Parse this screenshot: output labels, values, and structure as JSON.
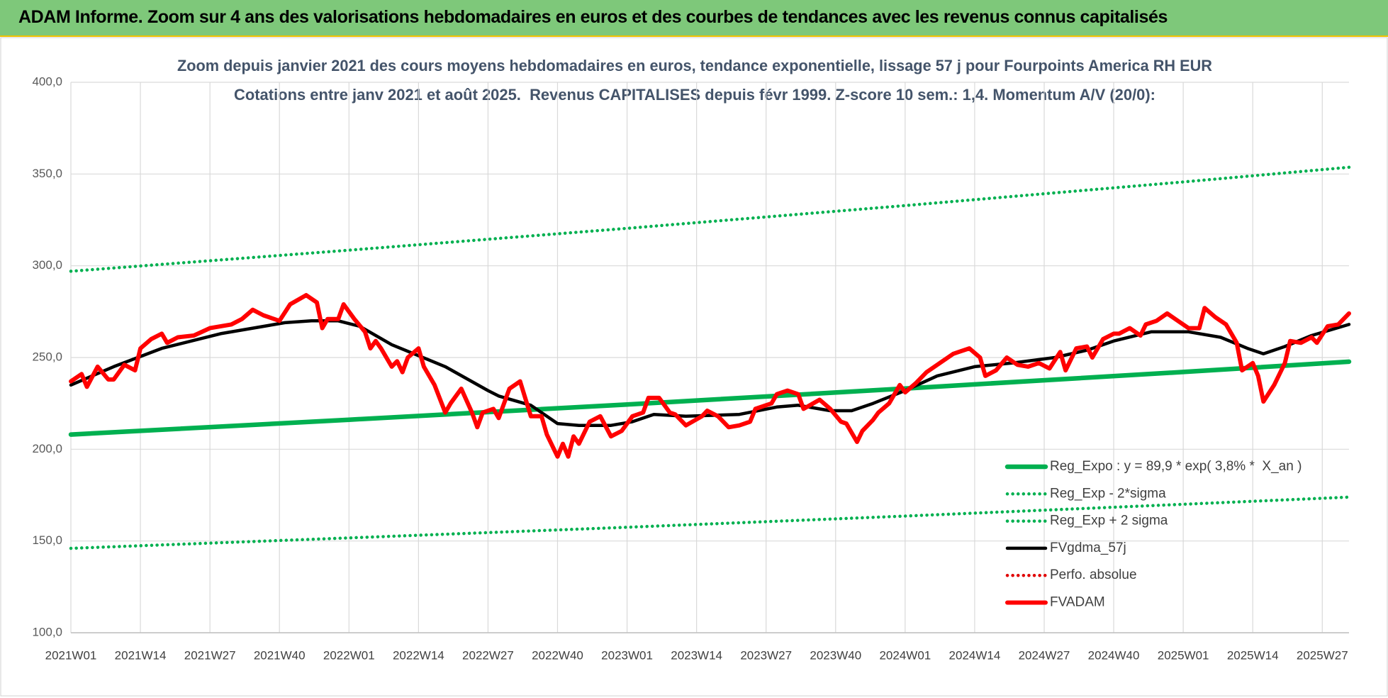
{
  "header": {
    "title": "ADAM Informe. Zoom sur 4 ans des valorisations hebdomadaires en euros et des courbes de tendances avec les revenus connus capitalisés"
  },
  "chart_data": {
    "type": "line",
    "title": "Zoom depuis janvier 2021 des cours moyens hebdomadaires en euros, tendance exponentielle, lissage 57 j pour Fourpoints America RH EUR",
    "subtitle": "Cotations entre janv 2021 et août 2025.  Revenus CAPITALISES depuis févr 1999. Z-score 10 sem.: 1,4. Momentum A/V (20/0):",
    "xlim": [
      0,
      239
    ],
    "xticks": [
      {
        "value": 0,
        "label": "2021W01"
      },
      {
        "value": 13,
        "label": "2021W14"
      },
      {
        "value": 26,
        "label": "2021W27"
      },
      {
        "value": 39,
        "label": "2021W40"
      },
      {
        "value": 52,
        "label": "2022W01"
      },
      {
        "value": 65,
        "label": "2022W14"
      },
      {
        "value": 78,
        "label": "2022W27"
      },
      {
        "value": 91,
        "label": "2022W40"
      },
      {
        "value": 104,
        "label": "2023W01"
      },
      {
        "value": 117,
        "label": "2023W14"
      },
      {
        "value": 130,
        "label": "2023W27"
      },
      {
        "value": 143,
        "label": "2023W40"
      },
      {
        "value": 156,
        "label": "2024W01"
      },
      {
        "value": 169,
        "label": "2024W14"
      },
      {
        "value": 182,
        "label": "2024W27"
      },
      {
        "value": 195,
        "label": "2024W40"
      },
      {
        "value": 208,
        "label": "2025W01"
      },
      {
        "value": 221,
        "label": "2025W14"
      },
      {
        "value": 234,
        "label": "2025W27"
      }
    ],
    "ylim": [
      100,
      400
    ],
    "yticks": [
      {
        "value": 100,
        "label": "100,0"
      },
      {
        "value": 150,
        "label": "150,0"
      },
      {
        "value": 200,
        "label": "200,0"
      },
      {
        "value": 250,
        "label": "250,0"
      },
      {
        "value": 300,
        "label": "300,0"
      },
      {
        "value": 350,
        "label": "350,0"
      },
      {
        "value": 400,
        "label": "400,0"
      }
    ],
    "grid": true,
    "legend": "right",
    "series": [
      {
        "name": "Reg_Expo : y = 89,9 * exp( 3,8% *  X_an )",
        "color": "#00b050",
        "style": "solid",
        "x": [
          0,
          52,
          104,
          156,
          208,
          239
        ],
        "values": [
          208,
          216.1,
          224.4,
          233.1,
          242.1,
          247.7
        ]
      },
      {
        "name": "Reg_Exp - 2*sigma",
        "color": "#00b050",
        "style": "dotted",
        "x": [
          0,
          52,
          104,
          156,
          208,
          239
        ],
        "values": [
          146,
          151.7,
          157.5,
          163.6,
          170,
          173.9
        ]
      },
      {
        "name": "Reg_Exp + 2 sigma",
        "color": "#00b050",
        "style": "dotted",
        "x": [
          0,
          52,
          104,
          156,
          208,
          239
        ],
        "values": [
          297,
          308.5,
          320.4,
          332.8,
          345.7,
          353.7
        ]
      },
      {
        "name": "FVgdma_57j",
        "color": "#000000",
        "style": "solid",
        "x": [
          0,
          8,
          17,
          28,
          40,
          45,
          50,
          54,
          60,
          70,
          78,
          80,
          86,
          91,
          95,
          101,
          105,
          109,
          115,
          125,
          132,
          136,
          142,
          146,
          150,
          156,
          162,
          169,
          176,
          184,
          190,
          195,
          202,
          209,
          215,
          220,
          223,
          227,
          232,
          239
        ],
        "values": [
          235,
          245,
          255,
          263,
          269,
          270,
          270,
          267,
          257,
          245,
          232,
          229,
          224,
          214,
          213,
          213,
          215,
          219,
          218,
          219,
          223,
          224,
          221,
          221,
          225,
          232,
          240,
          245,
          247,
          250,
          254,
          259,
          264,
          264,
          261,
          255,
          252,
          256,
          262,
          268
        ]
      },
      {
        "name": "Perfo. absolue",
        "color": "#e00000",
        "style": "dotted"
      },
      {
        "name": "FVADAM",
        "color": "#ff0000",
        "style": "solid",
        "x": [
          0,
          2,
          3,
          5,
          7,
          8,
          10,
          12,
          13,
          15,
          17,
          18,
          20,
          23,
          26,
          30,
          32,
          34,
          36,
          39,
          41,
          44,
          46,
          47,
          48,
          50,
          51,
          53,
          55,
          56,
          57,
          58,
          60,
          61,
          62,
          63,
          65,
          66,
          68,
          70,
          71,
          73,
          75,
          76,
          77,
          79,
          80,
          82,
          84,
          86,
          88,
          89,
          91,
          92,
          93,
          94,
          95,
          97,
          99,
          101,
          103,
          105,
          107,
          108,
          110,
          112,
          113,
          115,
          118,
          119,
          121,
          123,
          125,
          127,
          128,
          131,
          132,
          134,
          136,
          137,
          140,
          142,
          144,
          145,
          147,
          148,
          150,
          151,
          153,
          155,
          156,
          158,
          160,
          162,
          165,
          166,
          168,
          170,
          171,
          173,
          175,
          177,
          179,
          181,
          183,
          185,
          186,
          188,
          190,
          191,
          193,
          195,
          196,
          198,
          200,
          201,
          203,
          205,
          207,
          209,
          211,
          212,
          214,
          216,
          218,
          219,
          221,
          222,
          223,
          225,
          227,
          228,
          230,
          232,
          233,
          235,
          237,
          239
        ],
        "values": [
          237,
          241,
          234,
          245,
          238,
          238,
          246,
          243,
          255,
          260,
          263,
          258,
          261,
          262,
          266,
          268,
          271,
          276,
          273,
          270,
          279,
          284,
          280,
          266,
          271,
          271,
          279,
          271,
          264,
          255,
          259,
          255,
          245,
          248,
          242,
          250,
          255,
          245,
          235,
          220,
          225,
          233,
          220,
          212,
          220,
          222,
          217,
          233,
          237,
          218,
          218,
          208,
          196,
          203,
          196,
          207,
          203,
          215,
          218,
          207,
          210,
          218,
          220,
          228,
          228,
          220,
          219,
          213,
          218,
          221,
          218,
          212,
          213,
          215,
          222,
          225,
          230,
          232,
          230,
          222,
          227,
          222,
          215,
          214,
          204,
          210,
          216,
          220,
          225,
          235,
          231,
          236,
          242,
          246,
          252,
          253,
          255,
          250,
          240,
          243,
          250,
          246,
          245,
          247,
          244,
          253,
          243,
          255,
          256,
          250,
          260,
          263,
          263,
          266,
          262,
          268,
          270,
          274,
          270,
          266,
          266,
          277,
          272,
          268,
          258,
          243,
          247,
          240,
          226,
          235,
          247,
          259,
          258,
          261,
          258,
          267,
          268,
          274
        ]
      }
    ]
  }
}
